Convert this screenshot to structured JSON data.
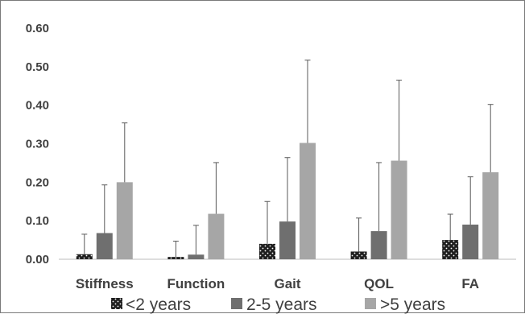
{
  "chart_data": {
    "type": "bar",
    "title": "",
    "xlabel": "",
    "ylabel": "",
    "categories": [
      "Stiffness",
      "Function",
      "Gait",
      "QOL",
      "FA"
    ],
    "ylim": [
      0,
      0.6
    ],
    "yticks": [
      "0.00",
      "0.10",
      "0.20",
      "0.30",
      "0.40",
      "0.50",
      "0.60"
    ],
    "ytick_values": [
      0,
      0.1,
      0.2,
      0.3,
      0.4,
      0.5,
      0.6
    ],
    "grid": false,
    "legend_position": "bottom",
    "series": [
      {
        "name": "<2 years",
        "values": [
          0.013,
          0.006,
          0.04,
          0.02,
          0.05
        ],
        "error_upper": [
          0.065,
          0.047,
          0.15,
          0.107,
          0.117
        ],
        "color": "#1f1f1f",
        "pattern": "dotted"
      },
      {
        "name": "2-5 years",
        "values": [
          0.068,
          0.012,
          0.098,
          0.073,
          0.09
        ],
        "error_upper": [
          0.193,
          0.088,
          0.264,
          0.251,
          0.214
        ],
        "color": "#6f6f6f",
        "pattern": "solid"
      },
      {
        "name": ">5 years",
        "values": [
          0.2,
          0.118,
          0.302,
          0.256,
          0.226
        ],
        "error_upper": [
          0.354,
          0.251,
          0.517,
          0.465,
          0.402
        ],
        "color": "#a6a6a6",
        "pattern": "solid"
      }
    ]
  }
}
